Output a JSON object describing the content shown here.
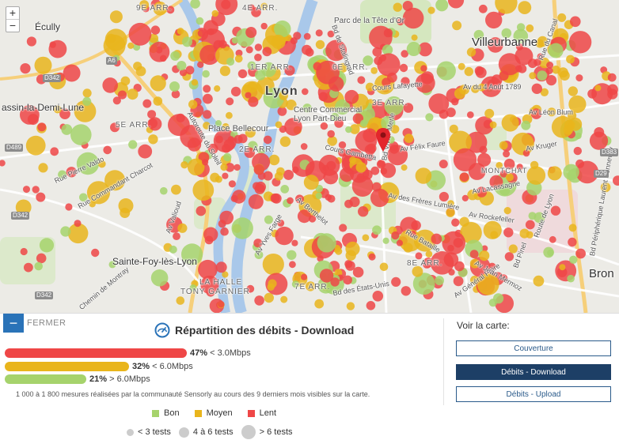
{
  "map": {
    "zoom_in": "+",
    "zoom_out": "−",
    "labels": {
      "ecully": "Écully",
      "villeurbanne": "Villeurbanne",
      "lyon": "Lyon",
      "tassin": "assin-la-Demi-Lune",
      "parc": "Parc de la Tête d'Or",
      "ste_foy": "Sainte-Foy-lès-Lyon",
      "bron": "Bron",
      "montchat": "MONTCHAT",
      "la_halle": "LA HALLE",
      "tony_garnier": "TONY GARNIER",
      "place_bellecour": "Place Bellecour",
      "centre_commercial_1": "Centre Commercial",
      "centre_commercial_2": "Lyon Part-Dieu",
      "arr_9e": "9E ARR.",
      "arr_6e": "6E ARR.",
      "arr_5e": "5E ARR.",
      "arr_1er": "1ER ARR.",
      "arr_2e": "2E ARR.",
      "arr_3e": "3E ARR.",
      "arr_7e": "7E ARR.",
      "arr_8e": "8E ARR.",
      "arr_4e": "4E ARR.",
      "av_4_aout": "Av du 4 Août 1789",
      "av_leon_blum": "Av Léon Blum",
      "av_felix_faure": "Av Félix Faure",
      "cours_gambetta": "Cours Gambetta",
      "av_lacassagne": "Av Lacassagne",
      "av_freres_lumiere": "Av des Frères Lumière",
      "av_rockefeller": "Av Rockefeller",
      "av_berthelot": "Av Berthelot",
      "rue_pierre_valdo": "Rue Pierre Valdo",
      "rue_cdt_charcot": "Rue Commandant Charcot",
      "av_valioud": "Av Valioud",
      "chemin_montray": "Chemin de Montray",
      "rue_vendome": "Rue Vendôme",
      "bd_pinel": "Bd Pinel",
      "av_general_frere": "Av Général Frère",
      "bd_des_etats_unis": "Bd des États-Unis",
      "av_jean_mermoz": "Av Jean Mermoz",
      "route_lyon": "Route de Lyon",
      "cours_lafayette": "Cours Lafayette",
      "av_kruger": "Av Kruger",
      "av_paul_santy": "Av Paul Santy",
      "bd_peripherique": "Bd Périphérique Laurent Bonnevay",
      "av_yves_farge": "Av Yves Farge",
      "autoroute": "Autoroute du Soleil",
      "bd_vivier": "Bd Vivier Merle",
      "rue_garibaldi": "Rue Garibaldi",
      "av_tony_garnier": "Av Tony Garnier",
      "bd_stalingrad": "Bd de Stalingrad",
      "rue_de_canal": "Rue du Canal",
      "rue_dauphine": "Rue Dauphiné",
      "rue_massena": "Rue Masséna",
      "bd_ambert": "Bd Ambert",
      "bd_bataille": "Rue Bataille"
    },
    "shields": {
      "a6": "A6",
      "d342a": "D342",
      "d489": "D489",
      "d342b": "D342",
      "d342c": "D342",
      "d383": "D383",
      "d29": "D29"
    }
  },
  "panel": {
    "close_label": "FERMER",
    "close_icon": "minus-icon",
    "title": "Répartition des débits - Download",
    "speed_icon": "speedometer-icon",
    "bars": [
      {
        "pct": 47,
        "pct_label": "47%",
        "desc": "< 3.0Mbps",
        "color": "#ef4747"
      },
      {
        "pct": 32,
        "pct_label": "32%",
        "desc": "< 6.0Mbps",
        "color": "#e9b51c"
      },
      {
        "pct": 21,
        "pct_label": "21%",
        "desc": "> 6.0Mbps",
        "color": "#a6d36c"
      }
    ],
    "note": "1 000 à 1 800 mesures réalisées par la communauté Sensorly au cours des 9 derniers mois visibles sur la carte.",
    "legend": [
      {
        "label": "Bon",
        "color": "#a6d36c"
      },
      {
        "label": "Moyen",
        "color": "#e9b51c"
      },
      {
        "label": "Lent",
        "color": "#ef4747"
      }
    ],
    "sizes": [
      {
        "label": "< 3 tests"
      },
      {
        "label": "4 à 6 tests"
      },
      {
        "label": "> 6 tests"
      }
    ],
    "voir_label": "Voir la carte:",
    "options": [
      {
        "label": "Couverture",
        "active": false
      },
      {
        "label": "Débits - Download",
        "active": true
      },
      {
        "label": "Débits - Upload",
        "active": false
      }
    ]
  }
}
